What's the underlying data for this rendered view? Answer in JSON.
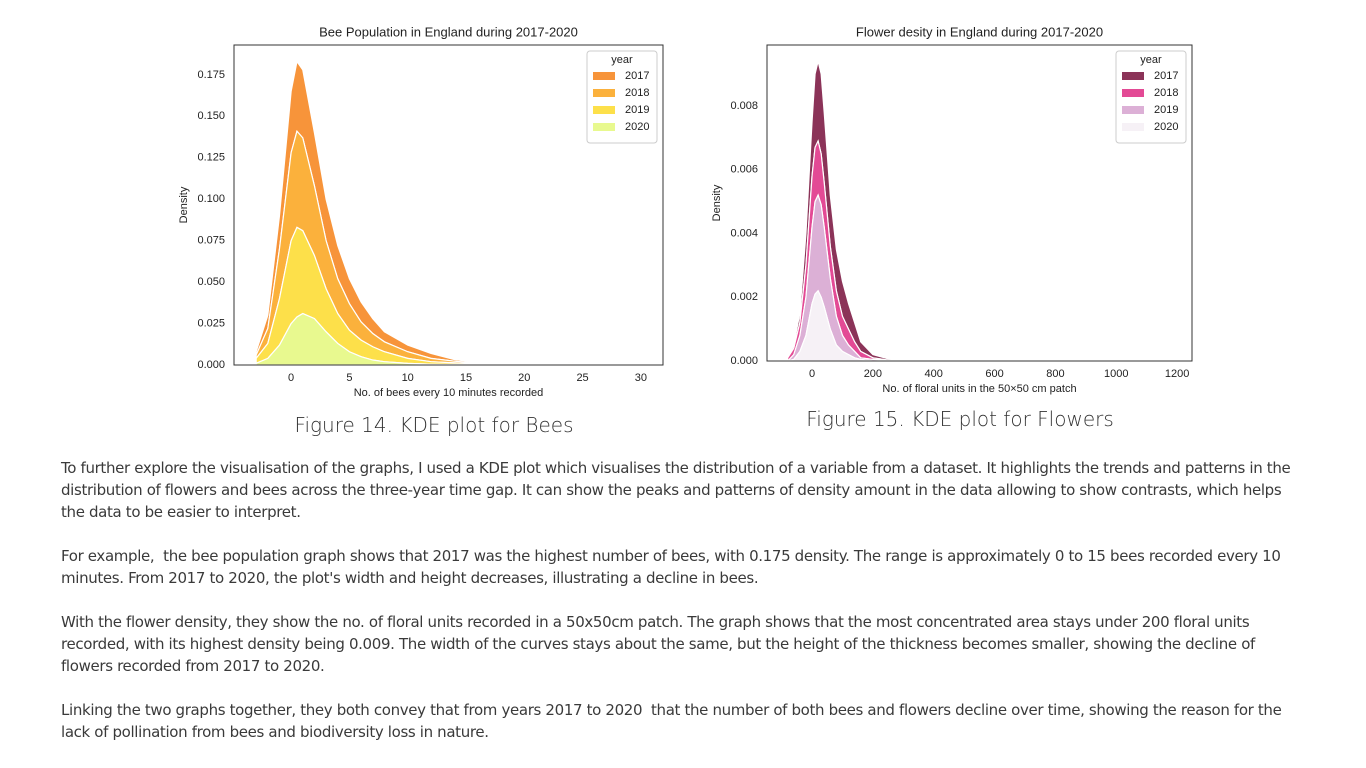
{
  "chart_data": [
    {
      "type": "area",
      "stacked": true,
      "title": "Bee Population in England during 2017-2020",
      "xlabel": "No. of bees every 10 minutes recorded",
      "ylabel": "Density",
      "legend_title": "year",
      "legend": "upper right",
      "grid": false,
      "x": [
        -3,
        -2,
        -1,
        0,
        0.5,
        1,
        2,
        3,
        4,
        5,
        6,
        7,
        8,
        10,
        12,
        14,
        16,
        18,
        20,
        22,
        24,
        26,
        28,
        30
      ],
      "series": [
        {
          "name": "2017",
          "color": "#f7943a",
          "values": [
            0.002,
            0.008,
            0.02,
            0.037,
            0.042,
            0.041,
            0.032,
            0.025,
            0.02,
            0.015,
            0.012,
            0.009,
            0.006,
            0.004,
            0.003,
            0.001,
            0.0005,
            0.0002,
            0.0002,
            0.0003,
            0.0008,
            0.0003,
            0.0001,
            0
          ]
        },
        {
          "name": "2018",
          "color": "#fbb13c",
          "values": [
            0.002,
            0.009,
            0.03,
            0.053,
            0.058,
            0.056,
            0.042,
            0.029,
            0.021,
            0.016,
            0.011,
            0.008,
            0.006,
            0.004,
            0.002,
            0.001,
            0.0004,
            0.0002,
            0.0002,
            0.0003,
            0.0006,
            0.0003,
            0.0001,
            0
          ]
        },
        {
          "name": "2019",
          "color": "#fde04a",
          "values": [
            0.003,
            0.009,
            0.028,
            0.05,
            0.054,
            0.05,
            0.038,
            0.026,
            0.018,
            0.013,
            0.01,
            0.008,
            0.006,
            0.003,
            0.0015,
            0.001,
            0.0005,
            0.0003,
            0.0002,
            0.0003,
            0.0005,
            0.0003,
            0.0001,
            0
          ]
        },
        {
          "name": "2020",
          "color": "#e8f98f",
          "values": [
            0.001,
            0.004,
            0.012,
            0.025,
            0.029,
            0.031,
            0.028,
            0.02,
            0.013,
            0.008,
            0.005,
            0.003,
            0.002,
            0.001,
            0.0005,
            0.0003,
            0.0001,
            0,
            0,
            0,
            0,
            0,
            0,
            0
          ]
        }
      ],
      "xlim": [
        -4.9,
        31.9
      ],
      "xticks": [
        0,
        5,
        10,
        15,
        20,
        25,
        30
      ],
      "ylim": [
        0,
        0.193
      ],
      "yticks": [
        {
          "value": 0,
          "label": "0.000"
        },
        {
          "value": 0.025,
          "label": "0.025"
        },
        {
          "value": 0.05,
          "label": "0.050"
        },
        {
          "value": 0.075,
          "label": "0.075"
        },
        {
          "value": 0.1,
          "label": "0.100"
        },
        {
          "value": 0.125,
          "label": "0.125"
        },
        {
          "value": 0.15,
          "label": "0.150"
        },
        {
          "value": 0.175,
          "label": "0.175"
        }
      ]
    },
    {
      "type": "area",
      "stacked": true,
      "title": "Flower desity in England during 2017-2020",
      "xlabel": "No. of floral units in the 50×50 cm patch",
      "ylabel": "Density",
      "legend_title": "year",
      "legend": "upper right",
      "grid": false,
      "x": [
        -80,
        -60,
        -40,
        -20,
        0,
        10,
        20,
        30,
        40,
        60,
        80,
        100,
        120,
        140,
        160,
        200,
        250,
        300,
        480,
        500,
        520,
        600,
        800,
        1000,
        1200
      ],
      "series": [
        {
          "name": "2017",
          "color": "#8b3358",
          "values": [
            0,
            0.0001,
            0.0003,
            0.001,
            0.0017,
            0.0023,
            0.0025,
            0.0025,
            0.0022,
            0.0016,
            0.0013,
            0.0011,
            0.0008,
            0.0006,
            0.0003,
            0.0001,
            4e-05,
            2e-05,
            2e-05,
            2e-05,
            2e-05,
            0,
            0,
            0,
            0
          ]
        },
        {
          "name": "2018",
          "color": "#e34a95",
          "values": [
            0.0001,
            0.0002,
            0.0004,
            0.001,
            0.0016,
            0.0017,
            0.0017,
            0.0016,
            0.0014,
            0.001,
            0.0008,
            0.0006,
            0.0005,
            0.0003,
            0.0002,
            5e-05,
            1e-05,
            1e-05,
            0,
            2e-05,
            0,
            0,
            0,
            0,
            0
          ]
        },
        {
          "name": "2019",
          "color": "#dcb0d6",
          "values": [
            0,
            0.00015,
            0.0005,
            0.0012,
            0.0024,
            0.0029,
            0.003,
            0.0029,
            0.0025,
            0.0016,
            0.0009,
            0.0005,
            0.0003,
            0.0002,
            5e-05,
            5e-05,
            2e-05,
            1e-05,
            0,
            2e-05,
            0,
            0,
            0,
            0,
            0
          ]
        },
        {
          "name": "2020",
          "color": "#f6f1f6",
          "values": [
            0,
            5e-05,
            0.0003,
            0.0008,
            0.0018,
            0.0021,
            0.0022,
            0.002,
            0.0017,
            0.001,
            0.0005,
            0.0003,
            0.0002,
            0.0001,
            5e-05,
            0,
            0,
            0,
            0,
            1e-05,
            0,
            0,
            0,
            0,
            0
          ]
        }
      ],
      "xlim": [
        -148,
        1249
      ],
      "xticks": [
        0,
        200,
        400,
        600,
        800,
        1000,
        1200
      ],
      "ylim": [
        0,
        0.00991
      ],
      "yticks": [
        {
          "value": 0,
          "label": "0.000"
        },
        {
          "value": 0.002,
          "label": "0.002"
        },
        {
          "value": 0.004,
          "label": "0.004"
        },
        {
          "value": 0.006,
          "label": "0.006"
        },
        {
          "value": 0.008,
          "label": "0.008"
        }
      ]
    }
  ],
  "captions": [
    "Figure 14. KDE  plot  for Bees",
    "Figure 15. KDE  plot  for Flowers"
  ],
  "paragraphs": [
    "To further explore the visualisation of the graphs, I used a KDE plot which visualises the distribution of a variable from a dataset. It highlights the trends and patterns in the distribution of flowers and bees across the three-year time gap. It can show the peaks and patterns of density amount in the data allowing to show contrasts, which helps the data to be easier to interpret.",
    "For example,  the bee population graph shows that 2017 was the highest number of bees, with 0.175 density. The range is approximately 0 to 15 bees recorded every 10 minutes. From 2017 to 2020, the plot's width and height decreases, illustrating a decline in bees.",
    "With the flower density, they show the no. of floral units recorded in a 50x50cm patch. The graph shows that the most concentrated area stays under 200 floral units recorded, with its highest density being 0.009. The width of the curves stays about the same, but the height of the thickness becomes smaller, showing the decline of flowers recorded from 2017 to 2020.",
    "Linking the two graphs together, they both convey that from years 2017 to 2020  that the number of both bees and flowers decline over time, showing the reason for the lack of pollination from bees and biodiversity loss in nature."
  ]
}
